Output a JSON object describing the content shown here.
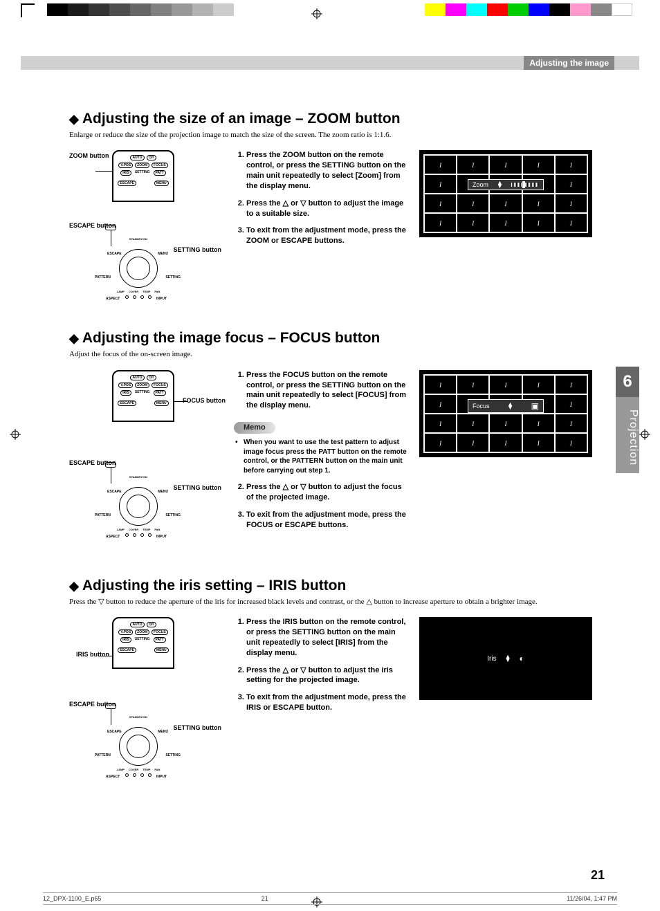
{
  "header": {
    "chapter_label": "Adjusting the image",
    "gradient_colors": [
      "#000000",
      "#1a1a1a",
      "#333333",
      "#4d4d4d",
      "#666666",
      "#808080",
      "#999999",
      "#b3b3b3",
      "#cccccc"
    ],
    "color_swatches": [
      "#ffff00",
      "#ff00ff",
      "#00ffff",
      "#ff0000",
      "#00cc00",
      "#0000ff",
      "#000000",
      "#ff99cc",
      "#888888",
      "#ffffff"
    ]
  },
  "sections": {
    "zoom": {
      "title": "Adjusting the size of an image – ZOOM button",
      "subtitle": "Enlarge or reduce the size of the projection image to match the size of the screen. The zoom ratio is 1:1.6.",
      "diagram": {
        "top_label": "ZOOM button",
        "escape_label": "ESCAPE button",
        "setting_label": "SETTING button"
      },
      "steps": [
        "Press the ZOOM button on the remote control, or press the SETTING button on the main unit repeatedly to select [Zoom] from the display menu.",
        "Press the △ or ▽ button to adjust the image to a suitable size.",
        "To exit from the adjustment mode, press the ZOOM or ESCAPE buttons."
      ],
      "osd_label": "Zoom",
      "osd_type": "grid"
    },
    "focus": {
      "title": "Adjusting the image focus – FOCUS button",
      "subtitle": "Adjust the focus of the on-screen image.",
      "diagram": {
        "top_label": "FOCUS button",
        "escape_label": "ESCAPE button",
        "setting_label": "SETTING button"
      },
      "step1": "Press the FOCUS button on the remote control, or press the SETTING button on the main unit repeatedly to select [FOCUS] from the display menu.",
      "memo_label": "Memo",
      "memo_text": "When you want to use the test pattern to adjust image focus press the PATT button on the remote control, or the PATTERN button on the main unit before carrying out step 1.",
      "step2": "Press the △ or ▽ button to adjust the  focus of the projected image.",
      "step3": "To exit from the adjustment mode, press the FOCUS or ESCAPE buttons.",
      "osd_label": "Focus",
      "osd_type": "grid"
    },
    "iris": {
      "title": "Adjusting the iris setting – IRIS button",
      "subtitle": "Press the ▽ button to reduce the aperture of the iris for increased black levels and contrast, or the △ button to increase aperture to obtain a brighter image.",
      "diagram": {
        "top_label": "IRIS button",
        "escape_label": "ESCAPE button",
        "setting_label": "SETTING button"
      },
      "steps": [
        "Press the IRIS button on the remote control, or press the SETTING button on the main unit repeatedly to select [IRIS] from the display menu.",
        " Press the △ or ▽ button to adjust the  iris setting for the projected image.",
        "To exit from the adjustment mode, press the IRIS or ESCAPE button."
      ],
      "osd_label": "Iris",
      "osd_type": "simple"
    }
  },
  "side_tab": {
    "number": "6",
    "label": "Projection"
  },
  "page_number": "21",
  "footer": {
    "file": "12_DPX-1100_E.p65",
    "page": "21",
    "timestamp": "11/26/04, 1:47 PM"
  },
  "remote_buttons": [
    "AUTO",
    "⏻/I",
    "V. POS",
    "ZOOM",
    "FOCUS",
    "IRIS",
    "SETTING",
    "PATT",
    "ESCAPE",
    "MENU"
  ],
  "dial_labels": {
    "tl": "ESCAPE",
    "tr": "MENU",
    "l": "PATTERN",
    "r": "SETTING",
    "bl": "ASPECT",
    "br": "INPUT",
    "top": "STANDBY/ON"
  },
  "led_labels": [
    "LAMP",
    "COVER",
    "TEMP",
    "FAN"
  ],
  "cell_marker": "I"
}
